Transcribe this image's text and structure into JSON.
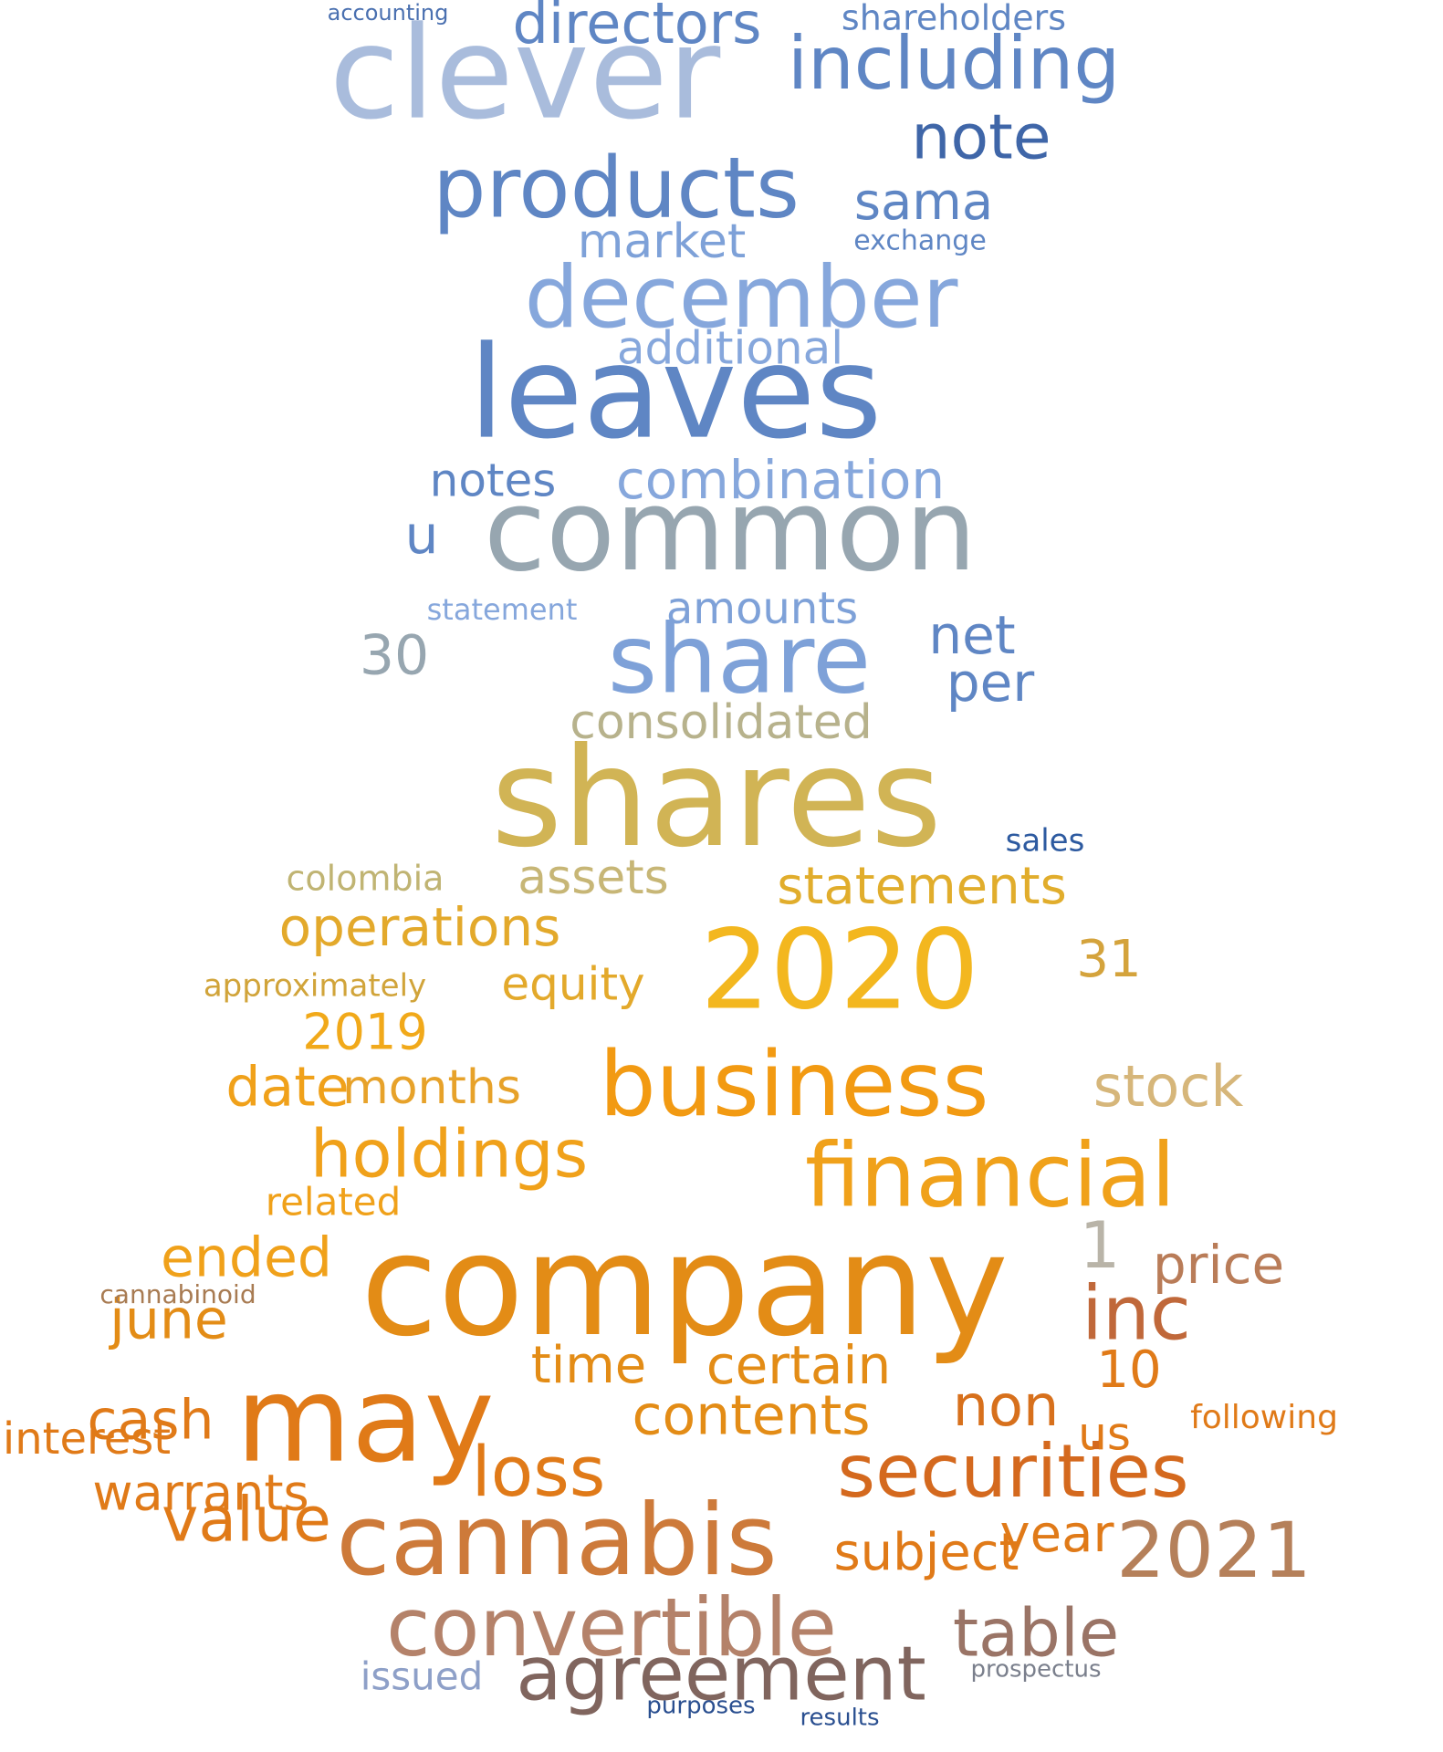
{
  "words": [
    {
      "text": "clever",
      "color": "#a9bcdc"
    },
    {
      "text": "directors",
      "color": "#5f86c4"
    },
    {
      "text": "including",
      "color": "#5f86c4"
    },
    {
      "text": "shareholders",
      "color": "#5f86c4"
    },
    {
      "text": "accounting",
      "color": "#4a70b0"
    },
    {
      "text": "note",
      "color": "#3f66a8"
    },
    {
      "text": "products",
      "color": "#5f86c4"
    },
    {
      "text": "sama",
      "color": "#5f86c4"
    },
    {
      "text": "market",
      "color": "#7ea1d8"
    },
    {
      "text": "exchange",
      "color": "#5f86c4"
    },
    {
      "text": "december",
      "color": "#86a7dc"
    },
    {
      "text": "leaves",
      "color": "#5f86c4"
    },
    {
      "text": "additional",
      "color": "#86a7dc"
    },
    {
      "text": "combination",
      "color": "#86a7dc"
    },
    {
      "text": "notes",
      "color": "#5f86c4"
    },
    {
      "text": "common",
      "color": "#97a6b0"
    },
    {
      "text": "u",
      "color": "#5f86c4"
    },
    {
      "text": "share",
      "color": "#7ea1d8"
    },
    {
      "text": "amounts",
      "color": "#7ea1d8"
    },
    {
      "text": "net",
      "color": "#5f86c4"
    },
    {
      "text": "30",
      "color": "#97a6b0"
    },
    {
      "text": "per",
      "color": "#5f86c4"
    },
    {
      "text": "statement",
      "color": "#86a7dc"
    },
    {
      "text": "consolidated",
      "color": "#b7b28c"
    },
    {
      "text": "shares",
      "color": "#d1b455"
    },
    {
      "text": "colombia",
      "color": "#c0b473"
    },
    {
      "text": "assets",
      "color": "#c7b676"
    },
    {
      "text": "statements",
      "color": "#e1ad2c"
    },
    {
      "text": "sales",
      "color": "#2d5aa0"
    },
    {
      "text": "operations",
      "color": "#e3a92b"
    },
    {
      "text": "2020",
      "color": "#f3b71f"
    },
    {
      "text": "31",
      "color": "#d4a33c"
    },
    {
      "text": "equity",
      "color": "#e3a92b"
    },
    {
      "text": "approximately",
      "color": "#d1a43a"
    },
    {
      "text": "2019",
      "color": "#f1a91a"
    },
    {
      "text": "business",
      "color": "#f29a12"
    },
    {
      "text": "stock",
      "color": "#d6b67a"
    },
    {
      "text": "date",
      "color": "#f0a11a"
    },
    {
      "text": "months",
      "color": "#e7a22a"
    },
    {
      "text": "holdings",
      "color": "#f0a11a"
    },
    {
      "text": "financial",
      "color": "#f0a11a"
    },
    {
      "text": "related",
      "color": "#f0a11a"
    },
    {
      "text": "ended",
      "color": "#f0a11a"
    },
    {
      "text": "company",
      "color": "#e38c16"
    },
    {
      "text": "1",
      "color": "#b9b4a8"
    },
    {
      "text": "price",
      "color": "#b97c58"
    },
    {
      "text": "inc",
      "color": "#c0683a"
    },
    {
      "text": "june",
      "color": "#e38c16"
    },
    {
      "text": "cannabinoid",
      "color": "#a87b52"
    },
    {
      "text": "time",
      "color": "#e38c16"
    },
    {
      "text": "certain",
      "color": "#e38c16"
    },
    {
      "text": "10",
      "color": "#e07a18"
    },
    {
      "text": "interest",
      "color": "#e07a18"
    },
    {
      "text": "cash",
      "color": "#e07a18"
    },
    {
      "text": "may",
      "color": "#e07a18"
    },
    {
      "text": "non",
      "color": "#d7701c"
    },
    {
      "text": "us",
      "color": "#e07a18"
    },
    {
      "text": "following",
      "color": "#e07a18"
    },
    {
      "text": "contents",
      "color": "#e38c16"
    },
    {
      "text": "warrants",
      "color": "#e07a18"
    },
    {
      "text": "value",
      "color": "#e07a18"
    },
    {
      "text": "loss",
      "color": "#e07a18"
    },
    {
      "text": "securities",
      "color": "#d4691e"
    },
    {
      "text": "year",
      "color": "#e07a18"
    },
    {
      "text": "subject",
      "color": "#e07a18"
    },
    {
      "text": "cannabis",
      "color": "#cd7a3a"
    },
    {
      "text": "2021",
      "color": "#b5805a"
    },
    {
      "text": "convertible",
      "color": "#b4826a"
    },
    {
      "text": "table",
      "color": "#9a7466"
    },
    {
      "text": "agreement",
      "color": "#80655e"
    },
    {
      "text": "issued",
      "color": "#8ea0c8"
    },
    {
      "text": "prospectus",
      "color": "#7a7f8c"
    },
    {
      "text": "results",
      "color": "#2a4f90"
    },
    {
      "text": "purposes",
      "color": "#2a4f90"
    }
  ]
}
